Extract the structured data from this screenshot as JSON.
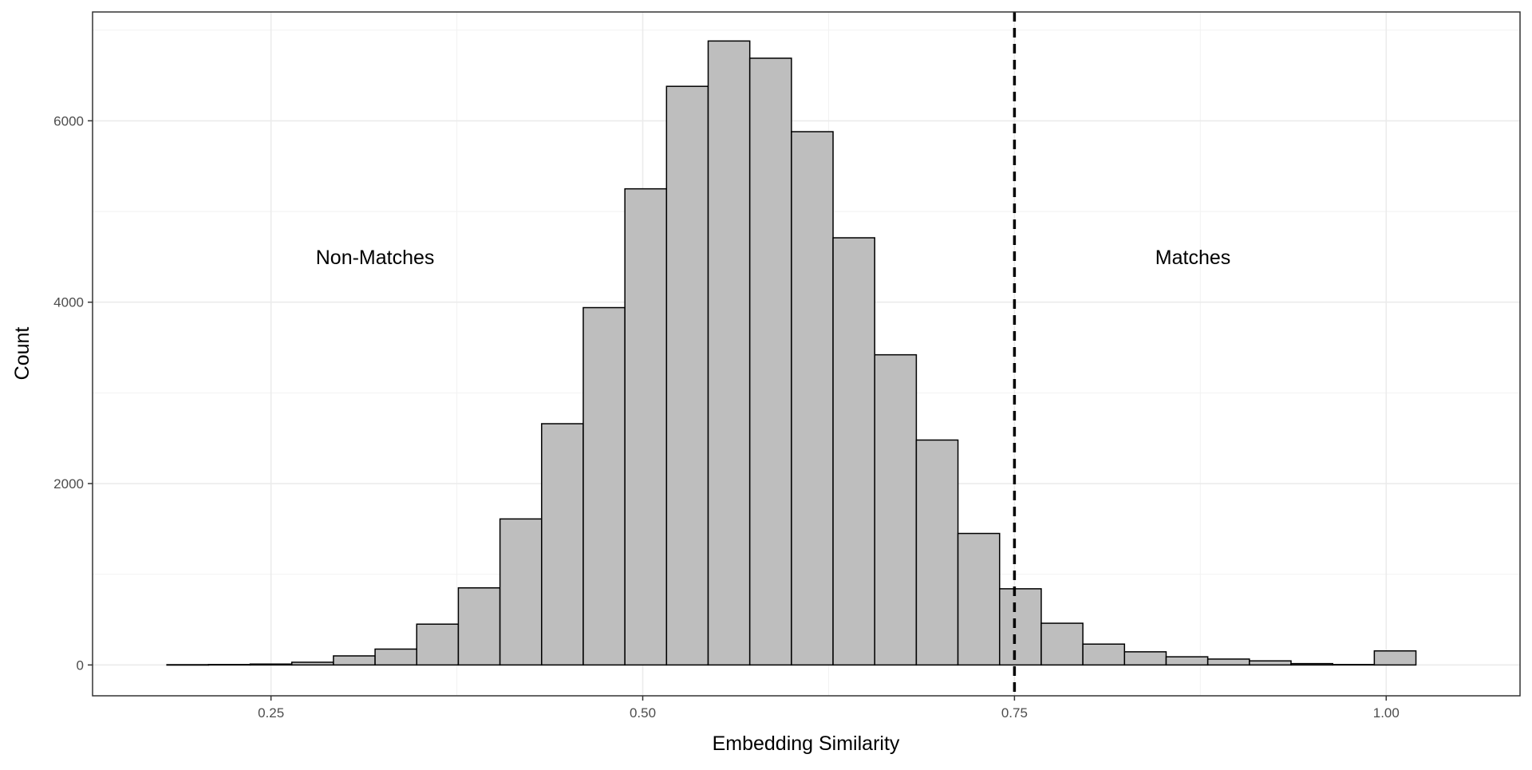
{
  "chart_data": {
    "type": "bar",
    "title": "",
    "xlabel": "Embedding Similarity",
    "ylabel": "Count",
    "xlim": [
      0.13,
      1.09
    ],
    "ylim": [
      -340,
      7200
    ],
    "x_ticks": [
      0.25,
      0.5,
      0.75,
      1.0
    ],
    "x_tick_labels": [
      "0.25",
      "0.50",
      "0.75",
      "1.00"
    ],
    "y_ticks": [
      0,
      2000,
      4000,
      6000
    ],
    "y_tick_labels": [
      "0",
      "2000",
      "4000",
      "6000"
    ],
    "x_minor_gridlines": [
      0.375,
      0.625,
      0.875
    ],
    "y_minor_gridlines": [
      1000,
      3000,
      5000,
      7000
    ],
    "grid": true,
    "bin_width": 0.028,
    "bins": [
      {
        "x0": 0.18,
        "x1": 0.208,
        "count": 3
      },
      {
        "x0": 0.208,
        "x1": 0.236,
        "count": 5
      },
      {
        "x0": 0.236,
        "x1": 0.264,
        "count": 10
      },
      {
        "x0": 0.264,
        "x1": 0.292,
        "count": 30
      },
      {
        "x0": 0.292,
        "x1": 0.32,
        "count": 100
      },
      {
        "x0": 0.32,
        "x1": 0.348,
        "count": 175
      },
      {
        "x0": 0.348,
        "x1": 0.376,
        "count": 450
      },
      {
        "x0": 0.376,
        "x1": 0.404,
        "count": 850
      },
      {
        "x0": 0.404,
        "x1": 0.432,
        "count": 1610
      },
      {
        "x0": 0.432,
        "x1": 0.46,
        "count": 2660
      },
      {
        "x0": 0.46,
        "x1": 0.488,
        "count": 3940
      },
      {
        "x0": 0.488,
        "x1": 0.516,
        "count": 5250
      },
      {
        "x0": 0.516,
        "x1": 0.544,
        "count": 6380
      },
      {
        "x0": 0.544,
        "x1": 0.572,
        "count": 6880
      },
      {
        "x0": 0.572,
        "x1": 0.6,
        "count": 6690
      },
      {
        "x0": 0.6,
        "x1": 0.628,
        "count": 5880
      },
      {
        "x0": 0.628,
        "x1": 0.656,
        "count": 4710
      },
      {
        "x0": 0.656,
        "x1": 0.684,
        "count": 3420
      },
      {
        "x0": 0.684,
        "x1": 0.712,
        "count": 2480
      },
      {
        "x0": 0.712,
        "x1": 0.74,
        "count": 1450
      },
      {
        "x0": 0.74,
        "x1": 0.768,
        "count": 840
      },
      {
        "x0": 0.768,
        "x1": 0.796,
        "count": 460
      },
      {
        "x0": 0.796,
        "x1": 0.824,
        "count": 230
      },
      {
        "x0": 0.824,
        "x1": 0.852,
        "count": 145
      },
      {
        "x0": 0.852,
        "x1": 0.88,
        "count": 90
      },
      {
        "x0": 0.88,
        "x1": 0.908,
        "count": 65
      },
      {
        "x0": 0.908,
        "x1": 0.936,
        "count": 45
      },
      {
        "x0": 0.936,
        "x1": 0.964,
        "count": 15
      },
      {
        "x0": 0.964,
        "x1": 0.992,
        "count": 5
      },
      {
        "x0": 0.992,
        "x1": 1.02,
        "count": 155
      }
    ],
    "bar_fill": "#bebebe",
    "bar_stroke": "#000000",
    "vline": {
      "x": 0.75,
      "style": "dashed",
      "color": "#000000"
    },
    "annotations": [
      {
        "text": "Non-Matches",
        "x": 0.32,
        "y": 4500
      },
      {
        "text": "Matches",
        "x": 0.87,
        "y": 4500
      }
    ]
  }
}
